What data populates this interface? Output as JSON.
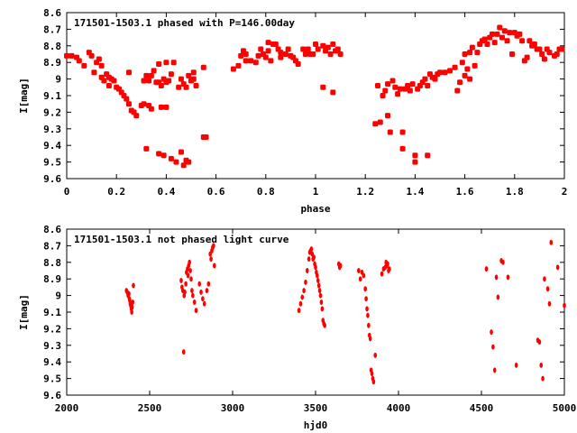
{
  "chart_data": [
    {
      "type": "scatter",
      "title": "171501-1503.1 phased with P=146.00day",
      "xlabel": "phase",
      "ylabel": "I[mag]",
      "xlim": [
        0,
        2
      ],
      "ylim": [
        9.6,
        8.6
      ],
      "y_inverted": true,
      "grid": false,
      "marker_color": "#ff0000",
      "xticks": [
        {
          "value": 0,
          "label": "0"
        },
        {
          "value": 0.2,
          "label": "0.2"
        },
        {
          "value": 0.4,
          "label": "0.4"
        },
        {
          "value": 0.6,
          "label": "0.6"
        },
        {
          "value": 0.8,
          "label": "0.8"
        },
        {
          "value": 1.0,
          "label": "1"
        },
        {
          "value": 1.2,
          "label": "1.2"
        },
        {
          "value": 1.4,
          "label": "1.4"
        },
        {
          "value": 1.6,
          "label": "1.6"
        },
        {
          "value": 1.8,
          "label": "1.8"
        },
        {
          "value": 2.0,
          "label": "2"
        }
      ],
      "yticks": [
        {
          "value": 8.6,
          "label": "8.6"
        },
        {
          "value": 8.7,
          "label": "8.7"
        },
        {
          "value": 8.8,
          "label": "8.8"
        },
        {
          "value": 8.9,
          "label": "8.9"
        },
        {
          "value": 9.0,
          "label": "9"
        },
        {
          "value": 9.1,
          "label": "9.1"
        },
        {
          "value": 9.2,
          "label": "9.2"
        },
        {
          "value": 9.3,
          "label": "9.3"
        },
        {
          "value": 9.4,
          "label": "9.4"
        },
        {
          "value": 9.5,
          "label": "9.5"
        },
        {
          "value": 9.6,
          "label": "9.6"
        }
      ],
      "points": [
        [
          0.0,
          8.86
        ],
        [
          0.02,
          8.86
        ],
        [
          0.04,
          8.87
        ],
        [
          0.05,
          8.89
        ],
        [
          0.07,
          8.92
        ],
        [
          0.09,
          8.84
        ],
        [
          0.1,
          8.86
        ],
        [
          0.11,
          8.96
        ],
        [
          0.12,
          8.9
        ],
        [
          0.13,
          8.88
        ],
        [
          0.14,
          8.92
        ],
        [
          0.14,
          8.99
        ],
        [
          0.15,
          9.01
        ],
        [
          0.16,
          8.97
        ],
        [
          0.17,
          8.99
        ],
        [
          0.17,
          9.04
        ],
        [
          0.18,
          9.0
        ],
        [
          0.19,
          9.01
        ],
        [
          0.2,
          9.05
        ],
        [
          0.21,
          9.06
        ],
        [
          0.22,
          9.08
        ],
        [
          0.23,
          9.1
        ],
        [
          0.24,
          9.12
        ],
        [
          0.25,
          9.15
        ],
        [
          0.25,
          8.96
        ],
        [
          0.26,
          9.19
        ],
        [
          0.27,
          9.2
        ],
        [
          0.28,
          9.22
        ],
        [
          0.3,
          9.16
        ],
        [
          0.31,
          9.01
        ],
        [
          0.31,
          9.15
        ],
        [
          0.32,
          8.98
        ],
        [
          0.32,
          9.42
        ],
        [
          0.33,
          9.16
        ],
        [
          0.33,
          9.01
        ],
        [
          0.34,
          9.18
        ],
        [
          0.34,
          8.98
        ],
        [
          0.35,
          8.95
        ],
        [
          0.36,
          9.02
        ],
        [
          0.37,
          8.91
        ],
        [
          0.37,
          9.02
        ],
        [
          0.37,
          9.45
        ],
        [
          0.38,
          9.04
        ],
        [
          0.38,
          9.17
        ],
        [
          0.39,
          9.0
        ],
        [
          0.39,
          9.46
        ],
        [
          0.4,
          8.9
        ],
        [
          0.4,
          9.02
        ],
        [
          0.4,
          9.17
        ],
        [
          0.41,
          9.01
        ],
        [
          0.42,
          8.97
        ],
        [
          0.42,
          9.48
        ],
        [
          0.43,
          8.9
        ],
        [
          0.44,
          9.5
        ],
        [
          0.45,
          9.05
        ],
        [
          0.46,
          9.0
        ],
        [
          0.46,
          9.44
        ],
        [
          0.47,
          9.03
        ],
        [
          0.47,
          9.52
        ],
        [
          0.48,
          9.05
        ],
        [
          0.48,
          9.49
        ],
        [
          0.49,
          8.98
        ],
        [
          0.49,
          9.5
        ],
        [
          0.5,
          9.01
        ],
        [
          0.51,
          9.0
        ],
        [
          0.51,
          8.96
        ],
        [
          0.52,
          9.04
        ],
        [
          0.55,
          9.35
        ],
        [
          0.55,
          8.93
        ],
        [
          0.56,
          9.35
        ],
        [
          0.67,
          8.94
        ],
        [
          0.69,
          8.92
        ],
        [
          0.7,
          8.86
        ],
        [
          0.71,
          8.83
        ],
        [
          0.72,
          8.85
        ],
        [
          0.72,
          8.89
        ],
        [
          0.74,
          8.89
        ],
        [
          0.76,
          8.9
        ],
        [
          0.77,
          8.86
        ],
        [
          0.78,
          8.82
        ],
        [
          0.79,
          8.85
        ],
        [
          0.8,
          8.87
        ],
        [
          0.81,
          8.83
        ],
        [
          0.81,
          8.78
        ],
        [
          0.82,
          8.89
        ],
        [
          0.83,
          8.79
        ],
        [
          0.84,
          8.79
        ],
        [
          0.85,
          8.82
        ],
        [
          0.86,
          8.84
        ],
        [
          0.86,
          8.87
        ],
        [
          0.88,
          8.85
        ],
        [
          0.89,
          8.82
        ],
        [
          0.9,
          8.86
        ],
        [
          0.91,
          8.87
        ],
        [
          0.92,
          8.89
        ],
        [
          0.93,
          8.91
        ],
        [
          0.95,
          8.82
        ],
        [
          0.96,
          8.85
        ],
        [
          0.97,
          8.82
        ],
        [
          0.98,
          8.85
        ],
        [
          0.99,
          8.85
        ],
        [
          1.0,
          8.79
        ],
        [
          1.01,
          8.82
        ],
        [
          1.03,
          8.8
        ],
        [
          1.03,
          9.05
        ],
        [
          1.04,
          8.83
        ],
        [
          1.05,
          8.81
        ],
        [
          1.06,
          8.85
        ],
        [
          1.07,
          8.79
        ],
        [
          1.07,
          9.08
        ],
        [
          1.08,
          8.83
        ],
        [
          1.09,
          8.82
        ],
        [
          1.1,
          8.85
        ],
        [
          1.24,
          9.27
        ],
        [
          1.25,
          9.04
        ],
        [
          1.26,
          9.26
        ],
        [
          1.27,
          9.1
        ],
        [
          1.28,
          9.07
        ],
        [
          1.29,
          9.22
        ],
        [
          1.29,
          9.03
        ],
        [
          1.3,
          9.32
        ],
        [
          1.31,
          9.01
        ],
        [
          1.32,
          9.05
        ],
        [
          1.33,
          9.09
        ],
        [
          1.34,
          9.06
        ],
        [
          1.35,
          9.32
        ],
        [
          1.35,
          9.42
        ],
        [
          1.36,
          9.06
        ],
        [
          1.37,
          9.04
        ],
        [
          1.38,
          9.07
        ],
        [
          1.39,
          9.03
        ],
        [
          1.4,
          9.46
        ],
        [
          1.4,
          9.5
        ],
        [
          1.41,
          9.06
        ],
        [
          1.42,
          9.04
        ],
        [
          1.43,
          9.02
        ],
        [
          1.44,
          9.0
        ],
        [
          1.45,
          9.04
        ],
        [
          1.45,
          9.46
        ],
        [
          1.46,
          8.97
        ],
        [
          1.47,
          8.99
        ],
        [
          1.48,
          9.0
        ],
        [
          1.49,
          8.97
        ],
        [
          1.5,
          8.96
        ],
        [
          1.52,
          8.96
        ],
        [
          1.54,
          8.95
        ],
        [
          1.56,
          8.93
        ],
        [
          1.57,
          9.07
        ],
        [
          1.58,
          9.02
        ],
        [
          1.59,
          8.9
        ],
        [
          1.6,
          8.85
        ],
        [
          1.6,
          8.98
        ],
        [
          1.61,
          8.94
        ],
        [
          1.62,
          8.84
        ],
        [
          1.62,
          9.0
        ],
        [
          1.63,
          8.81
        ],
        [
          1.64,
          8.92
        ],
        [
          1.65,
          8.84
        ],
        [
          1.66,
          8.79
        ],
        [
          1.67,
          8.77
        ],
        [
          1.68,
          8.76
        ],
        [
          1.69,
          8.79
        ],
        [
          1.7,
          8.75
        ],
        [
          1.71,
          8.73
        ],
        [
          1.72,
          8.78
        ],
        [
          1.73,
          8.73
        ],
        [
          1.74,
          8.69
        ],
        [
          1.75,
          8.75
        ],
        [
          1.76,
          8.71
        ],
        [
          1.77,
          8.77
        ],
        [
          1.78,
          8.72
        ],
        [
          1.79,
          8.85
        ],
        [
          1.8,
          8.72
        ],
        [
          1.81,
          8.74
        ],
        [
          1.82,
          8.73
        ],
        [
          1.83,
          8.77
        ],
        [
          1.84,
          8.89
        ],
        [
          1.85,
          8.87
        ],
        [
          1.86,
          8.77
        ],
        [
          1.87,
          8.8
        ],
        [
          1.88,
          8.79
        ],
        [
          1.89,
          8.82
        ],
        [
          1.9,
          8.82
        ],
        [
          1.91,
          8.85
        ],
        [
          1.92,
          8.88
        ],
        [
          1.93,
          8.82
        ],
        [
          1.94,
          8.84
        ],
        [
          1.96,
          8.86
        ],
        [
          1.97,
          8.85
        ],
        [
          1.98,
          8.82
        ],
        [
          1.99,
          8.82
        ]
      ]
    },
    {
      "type": "scatter",
      "title": "171501-1503.1 not phased light curve",
      "xlabel": "hjd0",
      "ylabel": "I[mag]",
      "xlim": [
        2000,
        5000
      ],
      "ylim": [
        9.6,
        8.6
      ],
      "y_inverted": true,
      "grid": false,
      "marker_color": "#ff0000",
      "xticks": [
        {
          "value": 2000,
          "label": "2000"
        },
        {
          "value": 2500,
          "label": "2500"
        },
        {
          "value": 3000,
          "label": "3000"
        },
        {
          "value": 3500,
          "label": "3500"
        },
        {
          "value": 4000,
          "label": "4000"
        },
        {
          "value": 4500,
          "label": "4500"
        },
        {
          "value": 5000,
          "label": "5000"
        }
      ],
      "yticks": [
        {
          "value": 8.6,
          "label": "8.6"
        },
        {
          "value": 8.7,
          "label": "8.7"
        },
        {
          "value": 8.8,
          "label": "8.8"
        },
        {
          "value": 8.9,
          "label": "8.9"
        },
        {
          "value": 9.0,
          "label": "9"
        },
        {
          "value": 9.1,
          "label": "9.1"
        },
        {
          "value": 9.2,
          "label": "9.2"
        },
        {
          "value": 9.3,
          "label": "9.3"
        },
        {
          "value": 9.4,
          "label": "9.4"
        },
        {
          "value": 9.5,
          "label": "9.5"
        },
        {
          "value": 9.6,
          "label": "9.6"
        }
      ],
      "points": [
        [
          2360,
          8.97
        ],
        [
          2365,
          8.98
        ],
        [
          2370,
          9.0
        ],
        [
          2375,
          8.99
        ],
        [
          2378,
          9.02
        ],
        [
          2380,
          9.03
        ],
        [
          2383,
          9.05
        ],
        [
          2386,
          9.06
        ],
        [
          2389,
          9.08
        ],
        [
          2392,
          9.1
        ],
        [
          2395,
          9.07
        ],
        [
          2398,
          9.04
        ],
        [
          2402,
          8.94
        ],
        [
          2690,
          8.91
        ],
        [
          2695,
          8.95
        ],
        [
          2700,
          8.97
        ],
        [
          2705,
          9.34
        ],
        [
          2708,
          9.0
        ],
        [
          2712,
          8.98
        ],
        [
          2718,
          8.93
        ],
        [
          2722,
          8.86
        ],
        [
          2728,
          8.84
        ],
        [
          2732,
          8.88
        ],
        [
          2735,
          8.82
        ],
        [
          2740,
          8.8
        ],
        [
          2745,
          8.85
        ],
        [
          2750,
          8.9
        ],
        [
          2755,
          8.97
        ],
        [
          2760,
          9.0
        ],
        [
          2770,
          9.04
        ],
        [
          2780,
          9.09
        ],
        [
          2800,
          8.93
        ],
        [
          2810,
          8.98
        ],
        [
          2820,
          9.02
        ],
        [
          2830,
          9.05
        ],
        [
          2845,
          8.97
        ],
        [
          2855,
          8.93
        ],
        [
          2865,
          8.75
        ],
        [
          2870,
          8.78
        ],
        [
          2875,
          8.73
        ],
        [
          2880,
          8.71
        ],
        [
          2885,
          8.7
        ],
        [
          2890,
          8.82
        ],
        [
          3400,
          9.09
        ],
        [
          3410,
          9.05
        ],
        [
          3420,
          9.01
        ],
        [
          3430,
          8.97
        ],
        [
          3440,
          8.92
        ],
        [
          3450,
          8.85
        ],
        [
          3460,
          8.78
        ],
        [
          3465,
          8.74
        ],
        [
          3470,
          8.73
        ],
        [
          3475,
          8.72
        ],
        [
          3480,
          8.75
        ],
        [
          3485,
          8.78
        ],
        [
          3490,
          8.77
        ],
        [
          3495,
          8.81
        ],
        [
          3500,
          8.83
        ],
        [
          3505,
          8.86
        ],
        [
          3510,
          8.88
        ],
        [
          3515,
          8.91
        ],
        [
          3520,
          8.94
        ],
        [
          3525,
          8.97
        ],
        [
          3530,
          9.0
        ],
        [
          3535,
          9.04
        ],
        [
          3540,
          9.08
        ],
        [
          3545,
          9.15
        ],
        [
          3550,
          9.17
        ],
        [
          3555,
          9.18
        ],
        [
          3640,
          8.81
        ],
        [
          3645,
          8.83
        ],
        [
          3650,
          8.82
        ],
        [
          3760,
          8.85
        ],
        [
          3770,
          8.9
        ],
        [
          3780,
          8.86
        ],
        [
          3790,
          8.88
        ],
        [
          3800,
          8.96
        ],
        [
          3805,
          9.02
        ],
        [
          3810,
          9.08
        ],
        [
          3815,
          9.12
        ],
        [
          3820,
          9.18
        ],
        [
          3825,
          9.24
        ],
        [
          3830,
          9.26
        ],
        [
          3835,
          9.45
        ],
        [
          3840,
          9.47
        ],
        [
          3845,
          9.5
        ],
        [
          3850,
          9.52
        ],
        [
          3860,
          9.36
        ],
        [
          3900,
          8.87
        ],
        [
          3910,
          8.84
        ],
        [
          3920,
          8.83
        ],
        [
          3925,
          8.8
        ],
        [
          3930,
          8.82
        ],
        [
          3935,
          8.81
        ],
        [
          3940,
          8.85
        ],
        [
          3945,
          8.84
        ],
        [
          4530,
          8.84
        ],
        [
          4560,
          9.22
        ],
        [
          4570,
          9.31
        ],
        [
          4580,
          9.45
        ],
        [
          4590,
          8.89
        ],
        [
          4600,
          9.01
        ],
        [
          4620,
          8.79
        ],
        [
          4630,
          8.8
        ],
        [
          4660,
          8.89
        ],
        [
          4710,
          9.42
        ],
        [
          4840,
          9.27
        ],
        [
          4850,
          9.28
        ],
        [
          4860,
          9.42
        ],
        [
          4870,
          9.5
        ],
        [
          4880,
          8.9
        ],
        [
          4900,
          8.96
        ],
        [
          4910,
          9.05
        ],
        [
          4920,
          8.68
        ],
        [
          4960,
          8.83
        ],
        [
          5000,
          9.06
        ]
      ]
    }
  ]
}
